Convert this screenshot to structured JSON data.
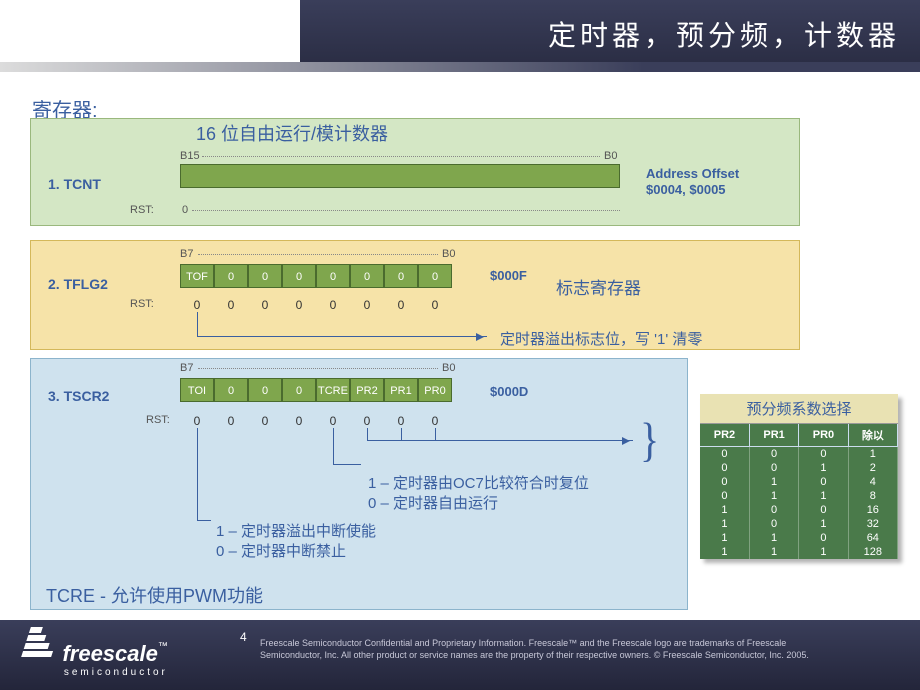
{
  "title": "定时器，预分频，计数器",
  "section": "寄存器:",
  "tcnt": {
    "name": "1.  TCNT",
    "subtitle": "16 位自由运行/模计数器",
    "bitHigh": "B15",
    "bitLow": "B0",
    "rstLabel": "RST:",
    "rstVal": "0",
    "addr1": "Address Offset",
    "addr2": "$0004, $0005"
  },
  "tflg2": {
    "name": "2.  TFLG2",
    "bitHigh": "B7",
    "bitLow": "B0",
    "bits": [
      "TOF",
      "0",
      "0",
      "0",
      "0",
      "0",
      "0",
      "0"
    ],
    "rstLabel": "RST:",
    "rst": [
      "0",
      "0",
      "0",
      "0",
      "0",
      "0",
      "0",
      "0"
    ],
    "addr": "$000F",
    "flagLabel": "标志寄存器",
    "arrowNote": "定时器溢出标志位，写 '1' 清零"
  },
  "tscr2": {
    "name": "3.  TSCR2",
    "bitHigh": "B7",
    "bitLow": "B0",
    "bits": [
      "TOI",
      "0",
      "0",
      "0",
      "TCRE",
      "PR2",
      "PR1",
      "PR0"
    ],
    "rstLabel": "RST:",
    "rst": [
      "0",
      "0",
      "0",
      "0",
      "0",
      "0",
      "0",
      "0"
    ],
    "addr": "$000D",
    "note1": "1 – 定时器由OC7比较符合时复位",
    "note2": "0 – 定时器自由运行",
    "note3": "1 – 定时器溢出中断使能",
    "note4": "0 – 定时器中断禁止",
    "note5a": "TCRE -",
    "note5b": "允许使用PWM功能"
  },
  "pt": {
    "title": "预分频系数选择",
    "headers": [
      "PR2",
      "PR1",
      "PR0",
      "除以"
    ],
    "rows": [
      [
        "0",
        "0",
        "0",
        "1"
      ],
      [
        "0",
        "0",
        "1",
        "2"
      ],
      [
        "0",
        "1",
        "0",
        "4"
      ],
      [
        "0",
        "1",
        "1",
        "8"
      ],
      [
        "1",
        "0",
        "0",
        "16"
      ],
      [
        "1",
        "0",
        "1",
        "32"
      ],
      [
        "1",
        "1",
        "0",
        "64"
      ],
      [
        "1",
        "1",
        "1",
        "128"
      ]
    ]
  },
  "footer": {
    "pageNum": "4",
    "line1": "Freescale Semiconductor Confidential and Proprietary Information. Freescale™ and the Freescale logo are trademarks of Freescale",
    "line2": "Semiconductor, Inc. All other product or service names are the property of their respective owners. © Freescale Semiconductor, Inc. 2005.",
    "brand": "freescale",
    "sub": "semiconductor",
    "tm": "™"
  }
}
